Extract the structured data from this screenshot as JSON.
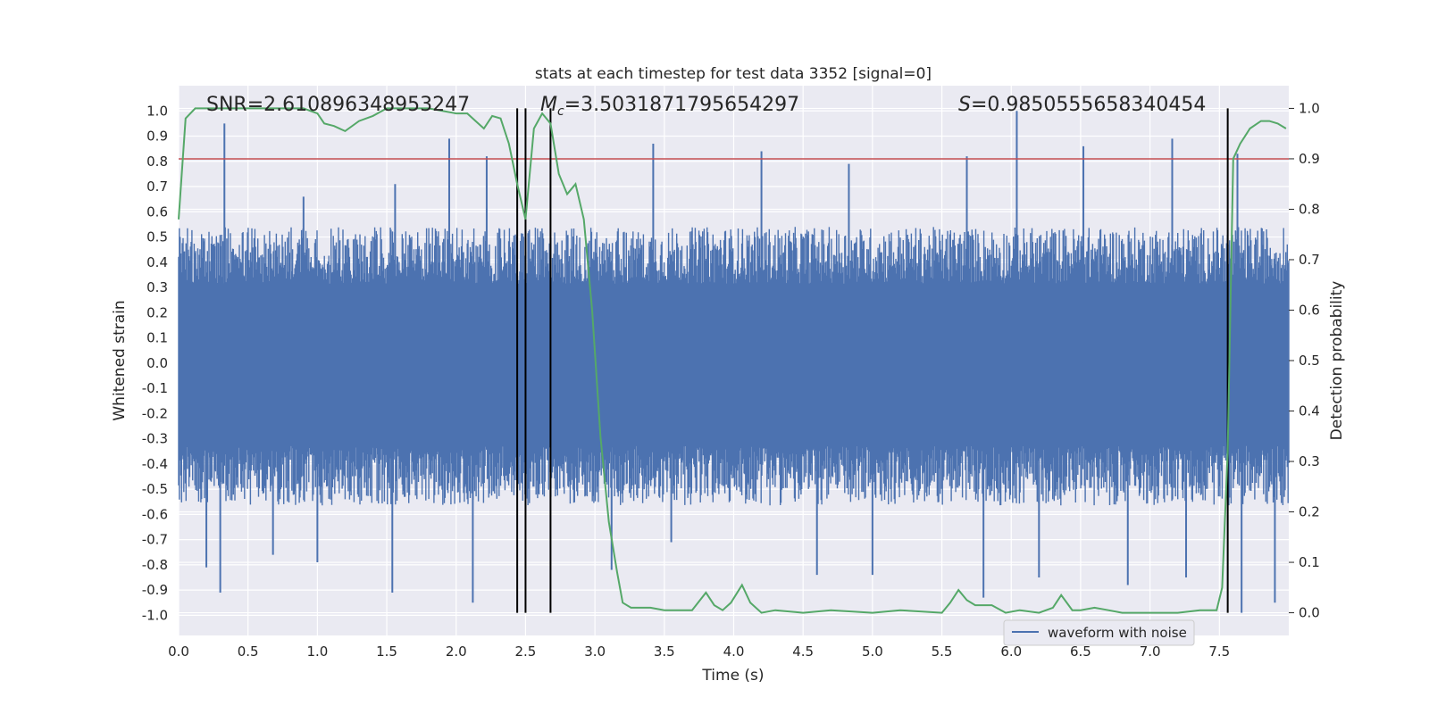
{
  "chart_data": {
    "type": "line",
    "title": "stats at each timestep for test data 3352 [signal=0]",
    "xlabel": "Time (s)",
    "ylabel_left": "Whitened strain",
    "ylabel_right": "Detection probability",
    "xlim": [
      0.0,
      8.0
    ],
    "ylim_left": [
      -1.08,
      1.1
    ],
    "ylim_right": [
      -0.045,
      1.045
    ],
    "x_ticks": [
      "0.0",
      "0.5",
      "1.0",
      "1.5",
      "2.0",
      "2.5",
      "3.0",
      "3.5",
      "4.0",
      "4.5",
      "5.0",
      "5.5",
      "6.0",
      "6.5",
      "7.0",
      "7.5"
    ],
    "y_left_ticks": [
      "1.0",
      "0.9",
      "0.8",
      "0.7",
      "0.6",
      "0.5",
      "0.4",
      "0.3",
      "0.2",
      "0.1",
      "0.0",
      "-0.1",
      "-0.2",
      "-0.3",
      "-0.4",
      "-0.5",
      "-0.6",
      "-0.7",
      "-0.8",
      "-0.9",
      "-1.0"
    ],
    "y_right_ticks": [
      "1.0",
      "0.9",
      "0.8",
      "0.7",
      "0.6",
      "0.5",
      "0.4",
      "0.3",
      "0.2",
      "0.1",
      "0.0"
    ],
    "grid": true,
    "annotations": {
      "snr_prefix": "SNR=",
      "snr_value": "2.610896348953247",
      "mc_symbol": "M",
      "mc_sub": "c",
      "mc_value": "=3.5031871795654297",
      "s_symbol": "S",
      "s_value": "=0.9850555658340454"
    },
    "legend": {
      "position": "lower-right",
      "entries": [
        "waveform with noise"
      ]
    },
    "threshold_right": 0.9,
    "vertical_lines_x": [
      2.44,
      2.5,
      2.68,
      7.56
    ],
    "series": [
      {
        "name": "waveform with noise",
        "color": "#4c72b0",
        "envelope_upper_typical": 0.45,
        "envelope_lower_typical": -0.47,
        "spikes_up": [
          [
            0.33,
            0.95
          ],
          [
            0.9,
            0.66
          ],
          [
            1.56,
            0.71
          ],
          [
            1.95,
            0.89
          ],
          [
            2.22,
            0.82
          ],
          [
            3.42,
            0.87
          ],
          [
            4.2,
            0.84
          ],
          [
            4.83,
            0.79
          ],
          [
            5.68,
            0.82
          ],
          [
            6.04,
            1.0
          ],
          [
            6.52,
            0.86
          ],
          [
            7.16,
            0.89
          ],
          [
            7.63,
            0.83
          ]
        ],
        "spikes_down": [
          [
            0.2,
            -0.81
          ],
          [
            0.3,
            -0.91
          ],
          [
            0.68,
            -0.76
          ],
          [
            1.0,
            -0.79
          ],
          [
            1.54,
            -0.91
          ],
          [
            2.12,
            -0.95
          ],
          [
            3.12,
            -0.82
          ],
          [
            3.55,
            -0.71
          ],
          [
            4.6,
            -0.84
          ],
          [
            5.0,
            -0.84
          ],
          [
            5.8,
            -0.93
          ],
          [
            6.2,
            -0.85
          ],
          [
            6.84,
            -0.88
          ],
          [
            7.26,
            -0.85
          ],
          [
            7.66,
            -0.99
          ],
          [
            7.9,
            -0.95
          ]
        ]
      },
      {
        "name": "detection probability",
        "color": "#55a868",
        "axis": "right",
        "x": [
          0.0,
          0.05,
          0.12,
          0.2,
          0.3,
          0.5,
          0.7,
          0.9,
          1.0,
          1.05,
          1.12,
          1.2,
          1.3,
          1.4,
          1.5,
          1.6,
          1.8,
          2.0,
          2.08,
          2.14,
          2.2,
          2.26,
          2.32,
          2.38,
          2.44,
          2.5,
          2.56,
          2.62,
          2.68,
          2.74,
          2.8,
          2.86,
          2.92,
          2.98,
          3.04,
          3.1,
          3.16,
          3.2,
          3.26,
          3.4,
          3.5,
          3.7,
          3.8,
          3.86,
          3.92,
          3.98,
          4.06,
          4.12,
          4.2,
          4.3,
          4.5,
          4.7,
          5.0,
          5.2,
          5.5,
          5.56,
          5.62,
          5.68,
          5.74,
          5.86,
          5.96,
          6.06,
          6.2,
          6.3,
          6.36,
          6.44,
          6.5,
          6.6,
          6.7,
          6.8,
          7.0,
          7.2,
          7.36,
          7.48,
          7.52,
          7.56,
          7.6,
          7.65,
          7.72,
          7.8,
          7.86,
          7.92,
          7.98
        ],
        "values": [
          0.78,
          0.98,
          1.0,
          1.0,
          1.0,
          1.0,
          1.0,
          1.0,
          0.99,
          0.97,
          0.965,
          0.955,
          0.975,
          0.985,
          1.0,
          1.0,
          1.0,
          0.99,
          0.99,
          0.975,
          0.96,
          0.985,
          0.98,
          0.93,
          0.85,
          0.78,
          0.96,
          0.99,
          0.97,
          0.87,
          0.83,
          0.85,
          0.78,
          0.6,
          0.35,
          0.18,
          0.08,
          0.02,
          0.01,
          0.01,
          0.005,
          0.005,
          0.04,
          0.015,
          0.005,
          0.02,
          0.055,
          0.02,
          0.0,
          0.005,
          0.0,
          0.005,
          0.0,
          0.005,
          0.0,
          0.02,
          0.045,
          0.025,
          0.015,
          0.015,
          0.0,
          0.005,
          0.0,
          0.01,
          0.035,
          0.005,
          0.005,
          0.01,
          0.005,
          0.0,
          0.0,
          0.0,
          0.005,
          0.005,
          0.05,
          0.32,
          0.9,
          0.93,
          0.96,
          0.975,
          0.975,
          0.97,
          0.96
        ]
      }
    ]
  }
}
